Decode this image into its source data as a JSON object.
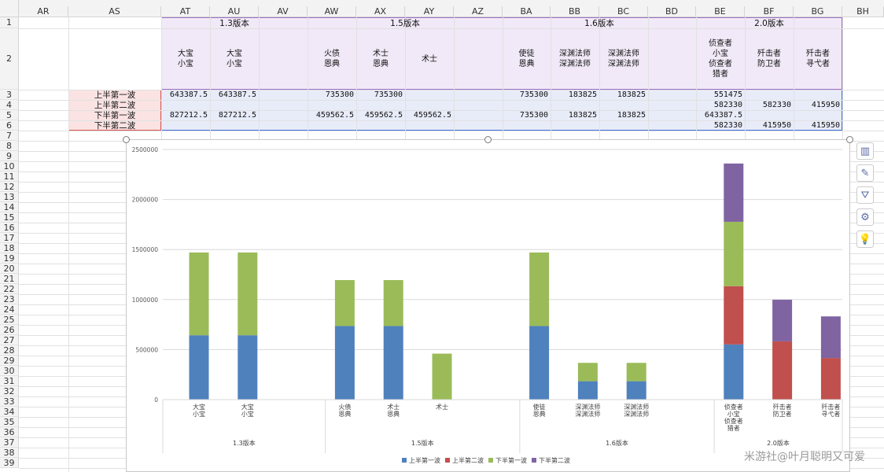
{
  "column_headers": [
    "AR",
    "AS",
    "AT",
    "AU",
    "AV",
    "AW",
    "AX",
    "AY",
    "AZ",
    "BA",
    "BB",
    "BC",
    "BD",
    "BE",
    "BF",
    "BG",
    "BH"
  ],
  "row_numbers": [
    "1",
    "2",
    "3",
    "4",
    "5",
    "6",
    "7",
    "8",
    "9",
    "10",
    "11",
    "12",
    "13",
    "14",
    "15",
    "16",
    "17",
    "18",
    "19",
    "20",
    "21",
    "22",
    "23",
    "24",
    "25",
    "26",
    "27",
    "28",
    "29",
    "30",
    "31",
    "32",
    "33",
    "34",
    "35",
    "36",
    "37",
    "38",
    "39"
  ],
  "version_headers": [
    "1.3版本",
    "1.5版本",
    "1.6版本",
    "2.0版本"
  ],
  "character_headers": [
    "大宝\n小宝",
    "大宝\n小宝",
    "",
    "火债\n恩典",
    "术士\n恩典",
    "术士",
    "",
    "使徒\n恩典",
    "深渊法师\n深渊法师",
    "深渊法师\n深渊法师",
    "",
    "侦查者\n小宝\n侦查者\n猎者",
    "歼击者\n防卫者",
    "歼击者\n寻弋者"
  ],
  "row_labels": [
    "上半第一波",
    "上半第二波",
    "下半第一波",
    "下半第二波"
  ],
  "table_rows": [
    [
      "643387.5",
      "643387.5",
      "",
      "735300",
      "735300",
      "",
      "",
      "735300",
      "183825",
      "183825",
      "",
      "551475",
      "",
      ""
    ],
    [
      "",
      "",
      "",
      "",
      "",
      "",
      "",
      "",
      "",
      "",
      "",
      "582330",
      "582330",
      "415950"
    ],
    [
      "827212.5",
      "827212.5",
      "",
      "459562.5",
      "459562.5",
      "459562.5",
      "",
      "735300",
      "183825",
      "183825",
      "",
      "643387.5",
      "",
      ""
    ],
    [
      "",
      "",
      "",
      "",
      "",
      "",
      "",
      "",
      "",
      "",
      "",
      "582330",
      "415950",
      "415950"
    ]
  ],
  "chart_data": {
    "type": "bar",
    "stacked": true,
    "categories": [
      "大宝\n小宝",
      "大宝\n小宝",
      "火债\n恩典",
      "术士\n恩典",
      "术士",
      "使徒\n恩典",
      "深渊法师\n深渊法师",
      "深渊法师\n深渊法师",
      "侦查者\n小宝\n侦查者\n猎者",
      "歼击者\n防卫者",
      "歼击者\n寻弋者"
    ],
    "groups": [
      {
        "name": "1.3版本",
        "count": 2
      },
      {
        "name": "1.5版本",
        "count": 3
      },
      {
        "name": "1.6版本",
        "count": 3
      },
      {
        "name": "2.0版本",
        "count": 3
      }
    ],
    "series": [
      {
        "name": "上半第一波",
        "color": "#4f81bd",
        "values": [
          643387.5,
          643387.5,
          735300,
          735300,
          0,
          735300,
          183825,
          183825,
          551475,
          0,
          0
        ]
      },
      {
        "name": "上半第二波",
        "color": "#c0504d",
        "values": [
          0,
          0,
          0,
          0,
          0,
          0,
          0,
          0,
          582330,
          582330,
          415950
        ]
      },
      {
        "name": "下半第一波",
        "color": "#9bbb59",
        "values": [
          827212.5,
          827212.5,
          459562.5,
          459562.5,
          459562.5,
          735300,
          183825,
          183825,
          643387.5,
          0,
          0
        ]
      },
      {
        "name": "下半第二波",
        "color": "#8064a2",
        "values": [
          0,
          0,
          0,
          0,
          0,
          0,
          0,
          0,
          582330,
          415950,
          415950
        ]
      }
    ],
    "ylim": [
      0,
      2500000
    ],
    "yticks": [
      "0",
      "500000",
      "1000000",
      "1500000",
      "2000000",
      "2500000"
    ],
    "grid": true,
    "legend": "bottom"
  },
  "side_tools": [
    {
      "name": "chart-elements-icon",
      "glyph": "▥"
    },
    {
      "name": "chart-style-icon",
      "glyph": "✎"
    },
    {
      "name": "chart-filter-icon",
      "glyph": "⛛"
    },
    {
      "name": "settings-icon",
      "glyph": "⚙"
    },
    {
      "name": "lightbulb-icon",
      "glyph": "💡"
    }
  ],
  "watermark": "米游社@叶月聪明又可爱"
}
